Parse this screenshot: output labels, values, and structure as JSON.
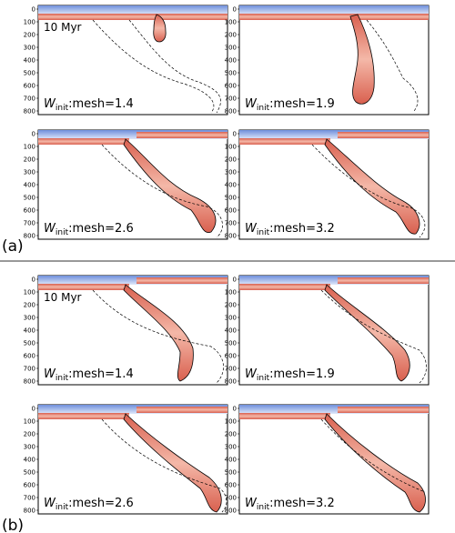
{
  "depth_ticks": [
    "0",
    "100",
    "200",
    "300",
    "400",
    "500",
    "600",
    "700",
    "800"
  ],
  "time_label": "10 Myr",
  "parts": [
    {
      "label": "(a)",
      "panels": [
        {
          "w_symbol": "W",
          "w_sub": "init",
          "w_rest": ":mesh=1.4",
          "show_time": true
        },
        {
          "w_symbol": "W",
          "w_sub": "init",
          "w_rest": ":mesh=1.9",
          "show_time": false
        },
        {
          "w_symbol": "W",
          "w_sub": "init",
          "w_rest": ":mesh=2.6",
          "show_time": false
        },
        {
          "w_symbol": "W",
          "w_sub": "init",
          "w_rest": ":mesh=3.2",
          "show_time": false
        }
      ]
    },
    {
      "label": "(b)",
      "panels": [
        {
          "w_symbol": "W",
          "w_sub": "init",
          "w_rest": ":mesh=1.4",
          "show_time": true
        },
        {
          "w_symbol": "W",
          "w_sub": "init",
          "w_rest": ":mesh=1.9",
          "show_time": false
        },
        {
          "w_symbol": "W",
          "w_sub": "init",
          "w_rest": ":mesh=2.6",
          "show_time": false
        },
        {
          "w_symbol": "W",
          "w_sub": "init",
          "w_rest": ":mesh=3.2",
          "show_time": false
        }
      ]
    }
  ],
  "colors": {
    "slab": "#e8867a",
    "slab_dark": "#c9564a",
    "slab_core": "#f6d5c8",
    "water": "#8ea9e8",
    "frame": "#000000",
    "separator": "#999999"
  }
}
